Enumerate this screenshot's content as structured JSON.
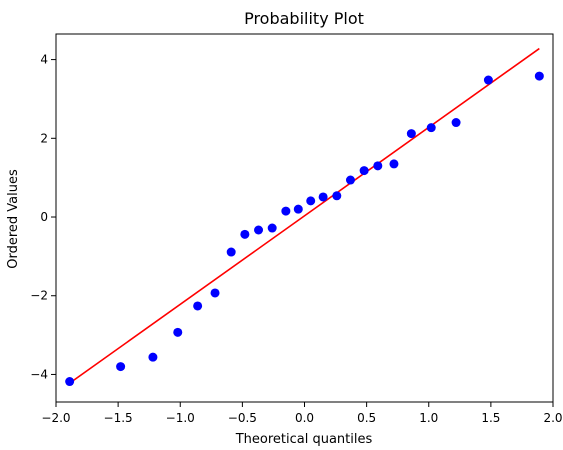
{
  "chart_data": {
    "type": "scatter",
    "title": "Probability Plot",
    "xlabel": "Theoretical quantiles",
    "ylabel": "Ordered Values",
    "xlim": [
      -2.0,
      2.0
    ],
    "ylim": [
      -4.7,
      4.65
    ],
    "xticks": [
      -2.0,
      -1.5,
      -1.0,
      -0.5,
      0.0,
      0.5,
      1.0,
      1.5,
      2.0
    ],
    "xtick_labels": [
      "−2.0",
      "−1.5",
      "−1.0",
      "−0.5",
      "0.0",
      "0.5",
      "1.0",
      "1.5",
      "2.0"
    ],
    "yticks": [
      -4,
      -2,
      0,
      2,
      4
    ],
    "ytick_labels": [
      "−4",
      "−2",
      "0",
      "2",
      "4"
    ],
    "grid": false,
    "legend": "none",
    "series": [
      {
        "marker_color": "#0000ff",
        "points": [
          {
            "x": -1.89,
            "y": -4.18
          },
          {
            "x": -1.48,
            "y": -3.8
          },
          {
            "x": -1.22,
            "y": -3.56
          },
          {
            "x": -1.02,
            "y": -2.93
          },
          {
            "x": -0.86,
            "y": -2.26
          },
          {
            "x": -0.72,
            "y": -1.93
          },
          {
            "x": -0.59,
            "y": -0.89
          },
          {
            "x": -0.48,
            "y": -0.44
          },
          {
            "x": -0.37,
            "y": -0.33
          },
          {
            "x": -0.26,
            "y": -0.28
          },
          {
            "x": -0.15,
            "y": 0.15
          },
          {
            "x": -0.05,
            "y": 0.2
          },
          {
            "x": 0.05,
            "y": 0.41
          },
          {
            "x": 0.15,
            "y": 0.51
          },
          {
            "x": 0.26,
            "y": 0.54
          },
          {
            "x": 0.37,
            "y": 0.94
          },
          {
            "x": 0.48,
            "y": 1.18
          },
          {
            "x": 0.59,
            "y": 1.3
          },
          {
            "x": 0.72,
            "y": 1.35
          },
          {
            "x": 0.86,
            "y": 2.12
          },
          {
            "x": 1.02,
            "y": 2.27
          },
          {
            "x": 1.22,
            "y": 2.4
          },
          {
            "x": 1.48,
            "y": 3.48
          },
          {
            "x": 1.89,
            "y": 3.58
          }
        ]
      }
    ],
    "fit_line": {
      "color": "#ff0000",
      "x": [
        -1.89,
        1.89
      ],
      "y": [
        -4.22,
        4.28
      ]
    }
  }
}
